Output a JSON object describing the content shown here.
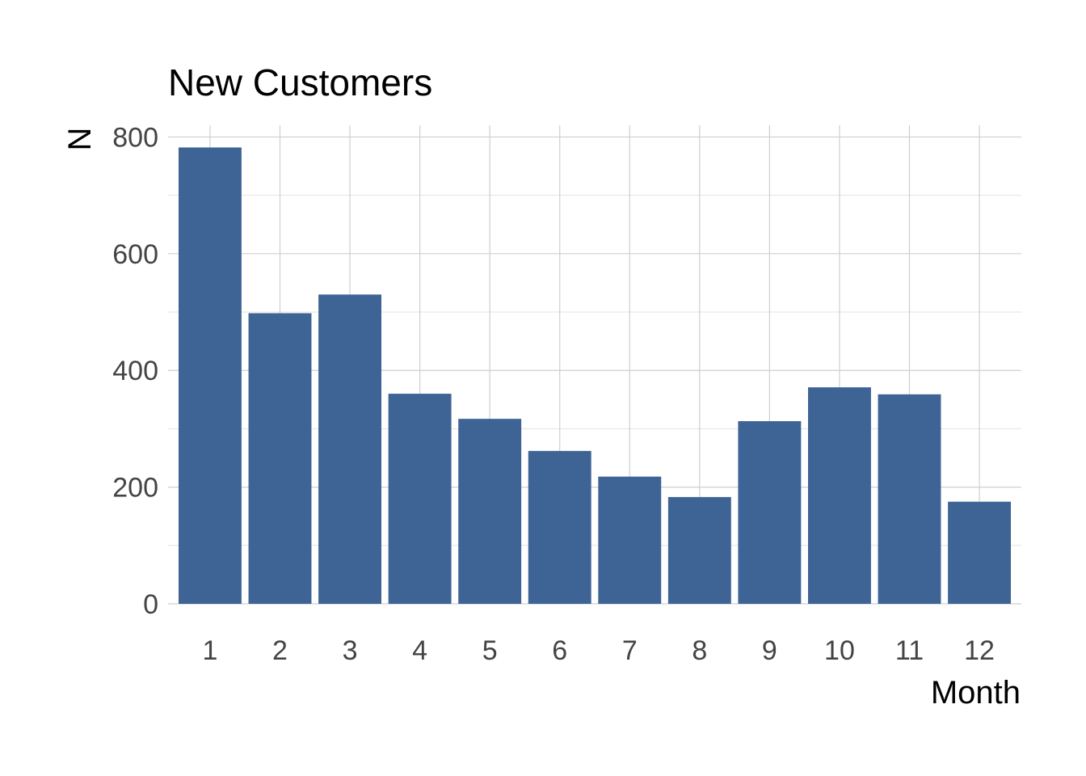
{
  "chart_data": {
    "type": "bar",
    "title": "New Customers",
    "xlabel": "Month",
    "ylabel": "N",
    "categories": [
      "1",
      "2",
      "3",
      "4",
      "5",
      "6",
      "7",
      "8",
      "9",
      "10",
      "11",
      "12"
    ],
    "values": [
      782,
      498,
      530,
      360,
      317,
      262,
      218,
      183,
      313,
      371,
      359,
      175
    ],
    "ylim": [
      0,
      820
    ],
    "yticks": [
      0,
      200,
      400,
      600,
      800
    ],
    "grid": true,
    "legend": "none",
    "colors": {
      "bar": "#3e6495",
      "grid": "#cfcfcf",
      "tick_text": "#444444"
    }
  }
}
